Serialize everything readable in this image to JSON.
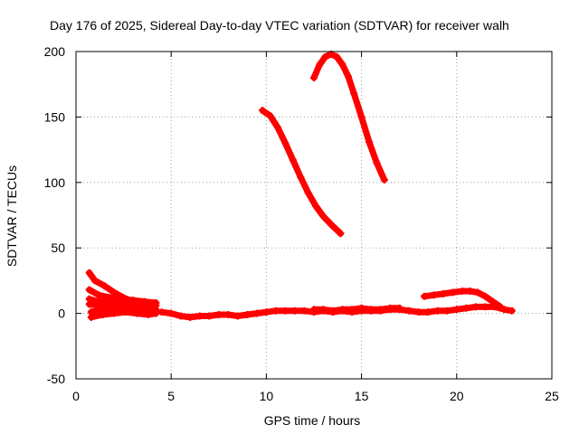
{
  "chart_data": {
    "type": "scatter",
    "title": "Day 176 of 2025, Sidereal Day-to-day VTEC variation (SDTVAR) for receiver walh",
    "xlabel": "GPS time / hours",
    "ylabel": "SDTVAR / TECUs",
    "xlim": [
      0,
      25
    ],
    "ylim": [
      -50,
      200
    ],
    "xticks": [
      0,
      5,
      10,
      15,
      20,
      25
    ],
    "yticks": [
      -50,
      0,
      50,
      100,
      150,
      200
    ],
    "grid": true,
    "marker_color": "#ff0000",
    "series": [
      {
        "name": "arc-a",
        "x": [
          9.8,
          10.2,
          10.6,
          11.0,
          11.4,
          11.8,
          12.2,
          12.6,
          13.0,
          13.4,
          13.9
        ],
        "y": [
          155,
          151,
          142,
          130,
          117,
          104,
          92,
          82,
          74,
          68,
          61
        ]
      },
      {
        "name": "arc-b",
        "x": [
          12.5,
          12.8,
          13.1,
          13.4,
          13.7,
          14.0,
          14.3,
          14.6,
          15.0,
          15.4,
          15.8,
          16.2
        ],
        "y": [
          180,
          190,
          196,
          198,
          196,
          190,
          181,
          168,
          150,
          131,
          115,
          102
        ]
      },
      {
        "name": "arc-c",
        "x": [
          18.3,
          18.8,
          19.3,
          19.8,
          20.3,
          20.7,
          21.1,
          21.5,
          21.9,
          22.3
        ],
        "y": [
          13,
          14,
          15,
          16,
          17,
          17,
          16,
          13,
          9,
          5
        ]
      },
      {
        "name": "arc-d",
        "x": [
          0.7,
          1.0,
          1.5,
          2.0,
          2.5,
          3.0,
          3.5,
          4.0
        ],
        "y": [
          31,
          25,
          21,
          16,
          12,
          9,
          6,
          4
        ]
      },
      {
        "name": "arc-e",
        "x": [
          0.7,
          1.2,
          1.8,
          2.4,
          3.0,
          3.6,
          4.2
        ],
        "y": [
          18,
          14,
          12,
          11,
          10,
          9,
          8
        ]
      },
      {
        "name": "arc-f",
        "x": [
          0.7,
          1.2,
          1.8,
          2.4,
          3.0,
          3.6,
          4.2
        ],
        "y": [
          11,
          9,
          8,
          7,
          7,
          6,
          6
        ]
      },
      {
        "name": "arc-g",
        "x": [
          0.7,
          1.2,
          1.8,
          2.4,
          3.0,
          3.6,
          4.2
        ],
        "y": [
          7,
          6,
          5,
          4,
          4,
          3,
          3
        ]
      },
      {
        "name": "arc-h",
        "x": [
          0.8,
          1.4,
          2.0,
          2.6,
          3.2,
          3.8,
          4.2
        ],
        "y": [
          1,
          3,
          3,
          2,
          2,
          1,
          1
        ]
      },
      {
        "name": "arc-i",
        "x": [
          0.8,
          1.4,
          2.0,
          2.6,
          3.2,
          3.8,
          4.2
        ],
        "y": [
          -3,
          -1,
          0,
          1,
          0,
          -1,
          0
        ]
      },
      {
        "name": "baseline",
        "x": [
          4.5,
          5.0,
          5.5,
          6.0,
          6.5,
          7.0,
          7.5,
          8.0,
          8.5,
          9.0,
          9.5,
          10.0,
          10.5,
          11.0,
          11.5,
          12.0,
          12.5,
          13.0,
          13.5,
          14.0,
          14.5,
          15.0,
          15.5,
          16.0,
          16.5,
          17.0,
          17.5,
          18.0,
          18.5,
          19.0,
          19.5,
          20.0,
          20.5,
          21.0,
          21.5,
          22.0,
          22.5,
          22.9
        ],
        "y": [
          1,
          0,
          -2,
          -3,
          -2,
          -2,
          -1,
          -1,
          -2,
          -1,
          0,
          1,
          2,
          2,
          2,
          2,
          1,
          2,
          1,
          2,
          1,
          2,
          2,
          2,
          3,
          3,
          2,
          1,
          1,
          2,
          2,
          3,
          4,
          5,
          5,
          5,
          3,
          2
        ]
      },
      {
        "name": "baseline-b",
        "x": [
          12.5,
          13.0,
          13.5,
          14.0,
          14.5,
          15.0,
          15.5,
          16.0,
          16.5,
          17.0
        ],
        "y": [
          3,
          3,
          2,
          3,
          3,
          4,
          3,
          3,
          4,
          4
        ]
      }
    ]
  }
}
